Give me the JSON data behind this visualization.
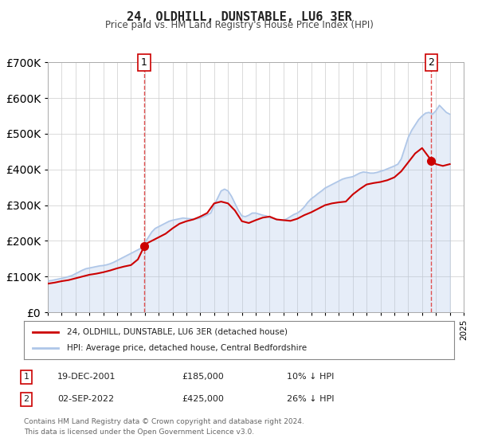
{
  "title": "24, OLDHILL, DUNSTABLE, LU6 3ER",
  "subtitle": "Price paid vs. HM Land Registry's House Price Index (HPI)",
  "legend_line1": "24, OLDHILL, DUNSTABLE, LU6 3ER (detached house)",
  "legend_line2": "HPI: Average price, detached house, Central Bedfordshire",
  "annotation1_label": "1",
  "annotation1_date": "19-DEC-2001",
  "annotation1_price": "£185,000",
  "annotation1_hpi": "10% ↓ HPI",
  "annotation2_label": "2",
  "annotation2_date": "02-SEP-2022",
  "annotation2_price": "£425,000",
  "annotation2_hpi": "26% ↓ HPI",
  "footer1": "Contains HM Land Registry data © Crown copyright and database right 2024.",
  "footer2": "This data is licensed under the Open Government Licence v3.0.",
  "hpi_color": "#aec6e8",
  "price_color": "#cc0000",
  "vline_color": "#e05050",
  "marker_color": "#cc0000",
  "background_color": "#ffffff",
  "plot_bg_color": "#ffffff",
  "grid_color": "#cccccc",
  "ylim": [
    0,
    700000
  ],
  "yticks": [
    0,
    100000,
    200000,
    300000,
    400000,
    500000,
    600000,
    700000
  ],
  "sale1_year": 2001.96,
  "sale1_value": 185000,
  "sale2_year": 2022.67,
  "sale2_value": 425000,
  "hpi_years": [
    1995,
    1995.25,
    1995.5,
    1995.75,
    1996,
    1996.25,
    1996.5,
    1996.75,
    1997,
    1997.25,
    1997.5,
    1997.75,
    1998,
    1998.25,
    1998.5,
    1998.75,
    1999,
    1999.25,
    1999.5,
    1999.75,
    2000,
    2000.25,
    2000.5,
    2000.75,
    2001,
    2001.25,
    2001.5,
    2001.75,
    2002,
    2002.25,
    2002.5,
    2002.75,
    2003,
    2003.25,
    2003.5,
    2003.75,
    2004,
    2004.25,
    2004.5,
    2004.75,
    2005,
    2005.25,
    2005.5,
    2005.75,
    2006,
    2006.25,
    2006.5,
    2006.75,
    2007,
    2007.25,
    2007.5,
    2007.75,
    2008,
    2008.25,
    2008.5,
    2008.75,
    2009,
    2009.25,
    2009.5,
    2009.75,
    2010,
    2010.25,
    2010.5,
    2010.75,
    2011,
    2011.25,
    2011.5,
    2011.75,
    2012,
    2012.25,
    2012.5,
    2012.75,
    2013,
    2013.25,
    2013.5,
    2013.75,
    2014,
    2014.25,
    2014.5,
    2014.75,
    2015,
    2015.25,
    2015.5,
    2015.75,
    2016,
    2016.25,
    2016.5,
    2016.75,
    2017,
    2017.25,
    2017.5,
    2017.75,
    2018,
    2018.25,
    2018.5,
    2018.75,
    2019,
    2019.25,
    2019.5,
    2019.75,
    2020,
    2020.25,
    2020.5,
    2020.75,
    2021,
    2021.25,
    2021.5,
    2021.75,
    2022,
    2022.25,
    2022.5,
    2022.75,
    2023,
    2023.25,
    2023.5,
    2023.75,
    2024
  ],
  "hpi_values": [
    88000,
    89000,
    91000,
    93000,
    95000,
    97000,
    100000,
    103000,
    108000,
    113000,
    118000,
    122000,
    124000,
    126000,
    128000,
    130000,
    131000,
    133000,
    136000,
    140000,
    145000,
    150000,
    155000,
    160000,
    165000,
    170000,
    175000,
    180000,
    195000,
    210000,
    225000,
    235000,
    240000,
    245000,
    250000,
    255000,
    258000,
    260000,
    262000,
    264000,
    263000,
    262000,
    261000,
    262000,
    264000,
    268000,
    273000,
    278000,
    300000,
    320000,
    340000,
    345000,
    340000,
    325000,
    305000,
    285000,
    270000,
    268000,
    272000,
    278000,
    278000,
    275000,
    272000,
    270000,
    265000,
    263000,
    260000,
    258000,
    258000,
    262000,
    268000,
    274000,
    278000,
    285000,
    295000,
    308000,
    318000,
    325000,
    333000,
    340000,
    348000,
    353000,
    358000,
    363000,
    368000,
    373000,
    376000,
    378000,
    380000,
    385000,
    390000,
    393000,
    392000,
    390000,
    390000,
    392000,
    395000,
    398000,
    402000,
    406000,
    410000,
    415000,
    430000,
    460000,
    490000,
    510000,
    525000,
    540000,
    550000,
    558000,
    560000,
    555000,
    565000,
    580000,
    570000,
    560000,
    555000
  ],
  "price_years": [
    1995,
    1995.5,
    1996,
    1996.5,
    1997,
    1997.5,
    1998,
    1998.5,
    1999,
    1999.5,
    2000,
    2000.5,
    2001,
    2001.5,
    2001.96,
    2002,
    2002.5,
    2003,
    2003.5,
    2004,
    2004.5,
    2005,
    2005.5,
    2006,
    2006.5,
    2007,
    2007.5,
    2008,
    2008.5,
    2009,
    2009.5,
    2010,
    2010.5,
    2011,
    2011.5,
    2012,
    2012.5,
    2013,
    2013.5,
    2014,
    2014.5,
    2015,
    2015.5,
    2016,
    2016.5,
    2017,
    2017.5,
    2018,
    2018.5,
    2019,
    2019.5,
    2020,
    2020.5,
    2021,
    2021.5,
    2022,
    2022.67,
    2023,
    2023.5,
    2024
  ],
  "price_values": [
    80000,
    83000,
    87000,
    90000,
    95000,
    100000,
    105000,
    108000,
    112000,
    117000,
    123000,
    128000,
    132000,
    148000,
    185000,
    190000,
    200000,
    210000,
    220000,
    235000,
    248000,
    255000,
    260000,
    268000,
    278000,
    305000,
    310000,
    305000,
    285000,
    255000,
    250000,
    258000,
    265000,
    268000,
    260000,
    258000,
    256000,
    262000,
    272000,
    280000,
    290000,
    300000,
    305000,
    308000,
    310000,
    330000,
    345000,
    358000,
    362000,
    365000,
    370000,
    378000,
    395000,
    420000,
    445000,
    460000,
    425000,
    415000,
    410000,
    415000
  ]
}
